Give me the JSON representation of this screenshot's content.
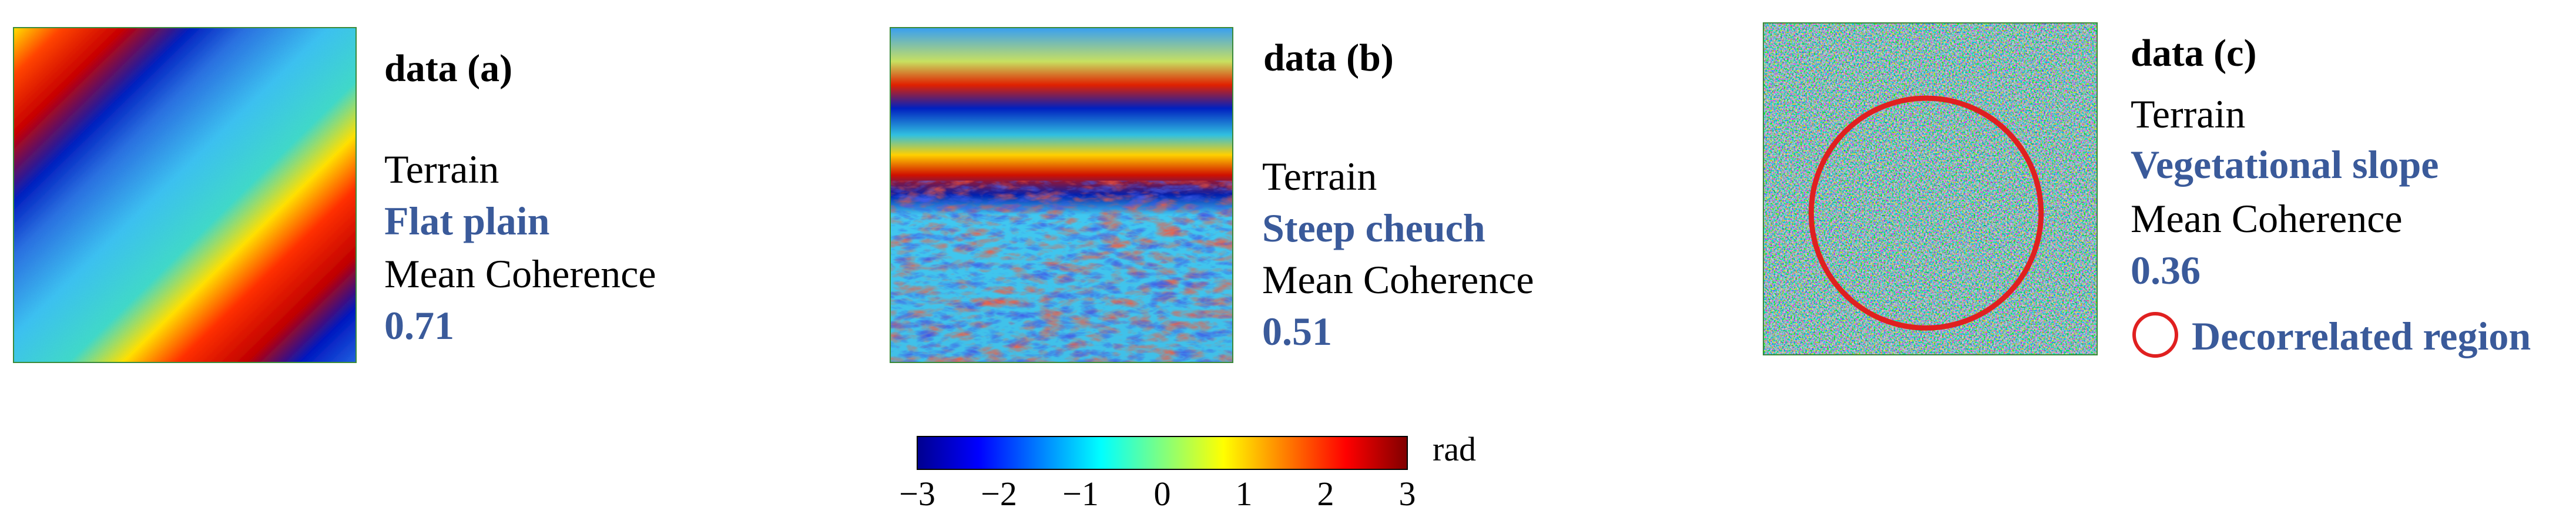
{
  "accent_color": "#3a5a9a",
  "circle_color": "#e02020",
  "panels": [
    {
      "title": "data (a)",
      "terrain_label": "Terrain",
      "terrain_value": "Flat plain",
      "coherence_label": "Mean Coherence",
      "coherence_value": "0.71",
      "image_description_icon": "interferogram-diagonal-fringes"
    },
    {
      "title": "data (b)",
      "terrain_label": "Terrain",
      "terrain_value": "Steep cheuch",
      "coherence_label": "Mean Coherence",
      "coherence_value": "0.51",
      "image_description_icon": "interferogram-dense-fringes"
    },
    {
      "title": "data (c)",
      "terrain_label": "Terrain",
      "terrain_value": "Vegetational slope",
      "coherence_label": "Mean Coherence",
      "coherence_value": "0.36",
      "legend_label": "Decorrelated region",
      "image_description_icon": "interferogram-noisy"
    }
  ],
  "colorbar": {
    "ticks": [
      "−3",
      "−2",
      "−1",
      "0",
      "1",
      "2",
      "3"
    ],
    "unit": "rad",
    "range": [
      -3,
      3
    ],
    "colormap": "jet"
  }
}
